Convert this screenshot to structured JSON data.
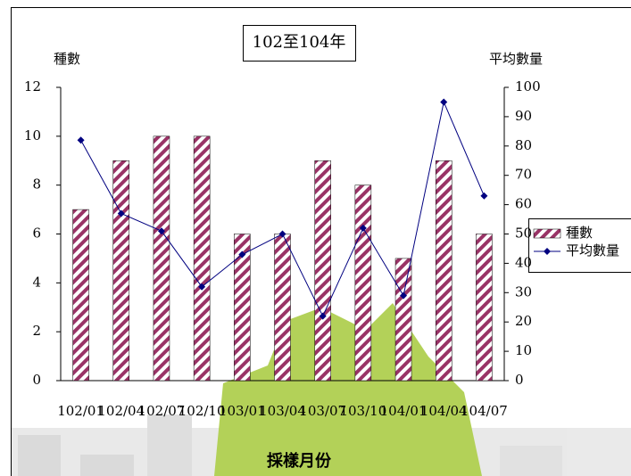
{
  "chart_data": {
    "type": "bar",
    "title": "102至104年",
    "y_label": "種數",
    "y2_label": "平均數量",
    "x_label": "採樣月份",
    "categories": [
      "102/01",
      "102/04",
      "102/07",
      "102/10",
      "103/01",
      "103/04",
      "103/07",
      "103/10",
      "104/01",
      "104/04",
      "104/07"
    ],
    "series": [
      {
        "name": "種數",
        "type": "bar",
        "color": "#993366",
        "values": [
          7,
          9,
          10,
          10,
          6,
          6,
          9,
          8,
          5,
          9,
          6
        ]
      },
      {
        "name": "平均數量",
        "type": "line",
        "axis": "y2",
        "color": "#000080",
        "values": [
          82,
          57,
          51,
          32,
          43,
          50,
          22,
          52,
          29,
          95,
          63
        ]
      }
    ],
    "ylim": [
      0,
      12
    ],
    "yticks": [
      0,
      2,
      4,
      6,
      8,
      10,
      12
    ],
    "y2lim": [
      0,
      100
    ],
    "y2ticks": [
      0,
      10,
      20,
      30,
      40,
      50,
      60,
      70,
      80,
      90,
      100
    ],
    "grid": false,
    "legend": "right"
  }
}
